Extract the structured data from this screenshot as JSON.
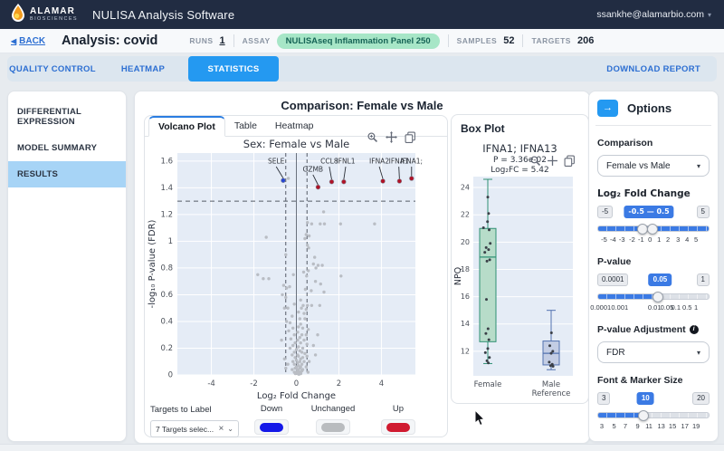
{
  "icons": {
    "back_arrow": "◀",
    "user_caret": "▾",
    "select_caret": "▾",
    "clear_x": "×",
    "small_caret": "⌄",
    "options_arrow": "→",
    "info": "i"
  },
  "header": {
    "brand_line1": "ALAMAR",
    "brand_line2": "BIOSCIENCES",
    "app_title": "NULISA Analysis Software",
    "user_email": "ssankhe@alamarbio.com"
  },
  "subheader": {
    "back_label": "BACK",
    "analysis_title": "Analysis: covid",
    "runs_label": "RUNS",
    "runs_value": "1",
    "assay_label": "ASSAY",
    "assay_value": "NULISAseq Inflammation Panel 250",
    "samples_label": "SAMPLES",
    "samples_value": "52",
    "targets_label": "TARGETS",
    "targets_value": "206"
  },
  "tabbar": {
    "tabs": [
      {
        "label": "QUALITY CONTROL",
        "active": false
      },
      {
        "label": "HEATMAP",
        "active": false
      },
      {
        "label": "STATISTICS",
        "active": true
      }
    ],
    "download": "DOWNLOAD REPORT"
  },
  "sidebar": {
    "items": [
      {
        "label": "DIFFERENTIAL EXPRESSION",
        "active": false
      },
      {
        "label": "MODEL SUMMARY",
        "active": false
      },
      {
        "label": "RESULTS",
        "active": true
      }
    ]
  },
  "main": {
    "title": "Comparison: Female vs Male",
    "plot_tabs": [
      {
        "label": "Volcano Plot",
        "active": true
      },
      {
        "label": "Table",
        "active": false
      },
      {
        "label": "Heatmap",
        "active": false
      }
    ],
    "targets": {
      "label": "Targets to Label",
      "value": "7 Targets selec...",
      "legend": [
        {
          "label": "Down",
          "color": "#1418e8"
        },
        {
          "label": "Unchanged",
          "color": "#b9bcbf"
        },
        {
          "label": "Up",
          "color": "#d01a30"
        }
      ]
    }
  },
  "boxplot": {
    "panel_title": "Box Plot",
    "title": "IFNA1; IFNA13",
    "p_line": "P = 3.36e-02",
    "fc_line": "Log₂FC = 5.42"
  },
  "options": {
    "panel_title": "Options",
    "comparison": {
      "label": "Comparison",
      "value": "Female vs Male"
    },
    "log2fc": {
      "label": "Log₂ Fold Change",
      "min": "-5",
      "max": "5",
      "value": "-0.5 — 0.5",
      "value_pos": 46,
      "fill_from": 0,
      "fill_to": 100,
      "handles": [
        40,
        49
      ],
      "ticks": [
        [
          "-5",
          6
        ],
        [
          "-4",
          14
        ],
        [
          "-3",
          22
        ],
        [
          "-2",
          31
        ],
        [
          "-1",
          39
        ],
        [
          "0",
          47
        ],
        [
          "1",
          55
        ],
        [
          "2",
          63
        ],
        [
          "3",
          72
        ],
        [
          "4",
          80
        ],
        [
          "5",
          88
        ]
      ]
    },
    "pvalue": {
      "label": "P-value",
      "min": "0.0001",
      "max": "1",
      "value": "0.05",
      "value_pos": 56,
      "fill_from": 0,
      "fill_to": 54,
      "handles": [
        54
      ],
      "ticks": [
        [
          "0.0001",
          3
        ],
        [
          "0.001",
          20
        ],
        [
          "0.01",
          51
        ],
        [
          "0.05",
          62
        ],
        [
          "0.1",
          70
        ],
        [
          "0.5",
          80
        ],
        [
          "1",
          88
        ]
      ]
    },
    "padj": {
      "label": "P-value Adjustment",
      "value": "FDR"
    },
    "marker": {
      "label": "Font & Marker Size",
      "min": "3",
      "max": "20",
      "value": "10",
      "value_pos": 43,
      "fill_from": 0,
      "fill_to": 41,
      "handles": [
        41
      ],
      "ticks": [
        [
          "3",
          4
        ],
        [
          "5",
          15
        ],
        [
          "7",
          25
        ],
        [
          "9",
          36
        ],
        [
          "11",
          46
        ],
        [
          "13",
          57
        ],
        [
          "15",
          67
        ],
        [
          "17",
          78
        ],
        [
          "19",
          88
        ]
      ]
    }
  },
  "chart_data": [
    {
      "type": "scatter",
      "title": "Sex: Female vs Male",
      "xlabel": "Log₂ Fold Change",
      "ylabel": "-log₁₀ P-value (FDR)",
      "xlim": [
        -5.6,
        5.6
      ],
      "ylim": [
        0,
        1.66
      ],
      "xticks": [
        -4,
        -2,
        0,
        2,
        4
      ],
      "yticks": [
        0,
        0.2,
        0.4,
        0.6,
        0.8,
        1,
        1.2,
        1.4,
        1.6
      ],
      "threshold_y": 1.3,
      "threshold_x": [
        -0.5,
        0.5
      ],
      "colors": {
        "unchanged": "#b9bdc4",
        "up": "#b01227",
        "down": "#2746d2"
      },
      "labeled_points": [
        {
          "label": "SELE",
          "type": "down",
          "x": -0.62,
          "y": 1.455,
          "lx": -0.95,
          "ly": 1.575
        },
        {
          "label": "GZMB",
          "type": "up",
          "x": 1.02,
          "y": 1.405,
          "lx": 0.78,
          "ly": 1.515
        },
        {
          "label": "CCL8",
          "type": "up",
          "x": 1.66,
          "y": 1.445,
          "lx": 1.55,
          "ly": 1.575
        },
        {
          "label": "IFNL1",
          "type": "up",
          "x": 2.23,
          "y": 1.445,
          "lx": 2.32,
          "ly": 1.575
        },
        {
          "label": "IFNA2",
          "type": "up",
          "x": 4.07,
          "y": 1.45,
          "lx": 3.9,
          "ly": 1.575
        },
        {
          "label": "IFNA1",
          "type": "up",
          "x": 4.85,
          "y": 1.45,
          "lx": 4.82,
          "ly": 1.575
        },
        {
          "label": "IFNA1;",
          "type": "up",
          "x": 5.42,
          "y": 1.47,
          "lx": 5.42,
          "ly": 1.575
        }
      ],
      "points": [
        [
          -0.38,
          1.47
        ],
        [
          1.28,
          1.22
        ],
        [
          0.52,
          1.14
        ],
        [
          0.72,
          1.13
        ],
        [
          1.12,
          1.13
        ],
        [
          1.32,
          1.13
        ],
        [
          2.08,
          1.13
        ],
        [
          3.68,
          1.13
        ],
        [
          0.46,
          1.05
        ],
        [
          0.6,
          1.04
        ],
        [
          -1.42,
          1.03
        ],
        [
          0.4,
          1.02
        ],
        [
          0.52,
          0.97
        ],
        [
          0.58,
          0.95
        ],
        [
          -0.5,
          0.9
        ],
        [
          0.86,
          0.88
        ],
        [
          0.8,
          0.83
        ],
        [
          1.02,
          0.82
        ],
        [
          1.22,
          0.82
        ],
        [
          0.92,
          0.8
        ],
        [
          0.56,
          0.78
        ],
        [
          0.34,
          0.77
        ],
        [
          -1.82,
          0.75
        ],
        [
          -0.14,
          0.75
        ],
        [
          0.48,
          0.74
        ],
        [
          2.1,
          0.74
        ],
        [
          -1.56,
          0.72
        ],
        [
          -1.3,
          0.72
        ],
        [
          0.9,
          0.7
        ],
        [
          1.14,
          0.68
        ],
        [
          -0.6,
          0.67
        ],
        [
          -0.32,
          0.66
        ],
        [
          -0.46,
          0.65
        ],
        [
          0.42,
          0.64
        ],
        [
          0.7,
          0.63
        ],
        [
          1.3,
          0.62
        ],
        [
          -0.66,
          0.6
        ],
        [
          -0.5,
          0.58
        ],
        [
          0.2,
          0.56
        ],
        [
          -0.1,
          0.53
        ],
        [
          0.32,
          0.52
        ],
        [
          0.52,
          0.52
        ],
        [
          0.72,
          0.52
        ],
        [
          1.1,
          0.52
        ],
        [
          -0.56,
          0.5
        ],
        [
          -0.4,
          0.5
        ],
        [
          0.24,
          0.5
        ],
        [
          0.46,
          0.49
        ],
        [
          0.1,
          0.47
        ],
        [
          0.36,
          0.46
        ],
        [
          -0.2,
          0.44
        ],
        [
          0.16,
          0.42
        ],
        [
          0.4,
          0.42
        ],
        [
          -0.46,
          0.4
        ],
        [
          -0.3,
          0.39
        ],
        [
          0.2,
          0.38
        ],
        [
          0.1,
          0.36
        ],
        [
          -0.16,
          0.35
        ],
        [
          0.3,
          0.35
        ],
        [
          0.56,
          0.34
        ],
        [
          -0.36,
          0.33
        ],
        [
          0.06,
          0.32
        ],
        [
          -0.1,
          0.3
        ],
        [
          0.26,
          0.3
        ],
        [
          0.46,
          0.3
        ],
        [
          1.0,
          0.3
        ],
        [
          0.16,
          0.28
        ],
        [
          -0.26,
          0.27
        ],
        [
          -0.7,
          0.26
        ],
        [
          0.06,
          0.26
        ],
        [
          0.36,
          0.26
        ],
        [
          -0.06,
          0.24
        ],
        [
          0.2,
          0.24
        ],
        [
          0.5,
          0.23
        ],
        [
          0.8,
          0.22
        ],
        [
          -0.16,
          0.22
        ],
        [
          0.1,
          0.21
        ],
        [
          -0.3,
          0.2
        ],
        [
          0.3,
          0.2
        ],
        [
          0.0,
          0.19
        ],
        [
          0.16,
          0.18
        ],
        [
          -0.1,
          0.17
        ],
        [
          0.26,
          0.17
        ],
        [
          0.4,
          0.16
        ],
        [
          -0.2,
          0.15
        ],
        [
          0.06,
          0.15
        ],
        [
          0.9,
          0.15
        ],
        [
          0.1,
          0.14
        ],
        [
          0.5,
          0.14
        ],
        [
          -0.06,
          0.13
        ],
        [
          0.3,
          0.13
        ],
        [
          -0.56,
          0.12
        ],
        [
          0.2,
          0.12
        ],
        [
          0.0,
          0.11
        ],
        [
          -0.16,
          0.1
        ],
        [
          0.16,
          0.1
        ],
        [
          0.36,
          0.1
        ],
        [
          0.6,
          0.1
        ],
        [
          0.06,
          0.09
        ],
        [
          -0.4,
          0.08
        ],
        [
          -0.1,
          0.08
        ],
        [
          0.26,
          0.08
        ],
        [
          0.1,
          0.07
        ],
        [
          0.0,
          0.06
        ],
        [
          0.2,
          0.06
        ],
        [
          0.46,
          0.06
        ],
        [
          -0.06,
          0.05
        ],
        [
          0.16,
          0.05
        ],
        [
          -0.5,
          0.05
        ],
        [
          0.05,
          0.04
        ],
        [
          0.3,
          0.04
        ],
        [
          -0.2,
          0.04
        ],
        [
          0.1,
          0.03
        ],
        [
          0.26,
          0.03
        ],
        [
          0.0,
          0.02
        ],
        [
          0.16,
          0.02
        ],
        [
          -0.1,
          0.02
        ],
        [
          0.55,
          0.02
        ],
        [
          0.05,
          0.01
        ],
        [
          0.21,
          0.01
        ],
        [
          -0.05,
          0.01
        ],
        [
          0.12,
          0.005
        ]
      ]
    },
    {
      "type": "box",
      "ylabel": "NPQ",
      "yticks": [
        12,
        14,
        16,
        18,
        20,
        22,
        24
      ],
      "ylim": [
        10.2,
        24.8
      ],
      "groups": [
        {
          "name": "Female",
          "name2": "",
          "fill": "#b7dcc9",
          "stroke": "#2f8f74",
          "q1": 12.7,
          "median": 18.9,
          "q3": 21.0,
          "whisker_low": 11.1,
          "whisker_high": 24.6,
          "points": [
            [
              0,
              23.3
            ],
            [
              0.3,
              22.1
            ],
            [
              -0.1,
              21.5
            ],
            [
              -1.6,
              21.05
            ],
            [
              0.5,
              20.9
            ],
            [
              0.9,
              19.9
            ],
            [
              -0.6,
              19.6
            ],
            [
              0.3,
              19.45
            ],
            [
              -1.1,
              19.25
            ],
            [
              0.7,
              18.7
            ],
            [
              -0.3,
              18.6
            ],
            [
              -0.5,
              15.8
            ],
            [
              0.1,
              13.65
            ],
            [
              -0.7,
              13.3
            ],
            [
              0.4,
              12.85
            ],
            [
              0,
              12.2
            ],
            [
              -0.9,
              11.9
            ],
            [
              0.6,
              11.55
            ],
            [
              -0.3,
              11.3
            ],
            [
              0.2,
              11.15
            ]
          ]
        },
        {
          "name": "Male",
          "name2": "Reference",
          "fill": "#c3cde4",
          "stroke": "#5272b0",
          "q1": 11.0,
          "median": 11.85,
          "q3": 12.75,
          "whisker_low": 10.65,
          "whisker_high": 15.0,
          "points": [
            [
              0.1,
              13.35
            ],
            [
              -0.5,
              12.4
            ],
            [
              0.6,
              12.0
            ],
            [
              0,
              11.85
            ],
            [
              -0.7,
              11.2
            ],
            [
              0.4,
              11.05
            ],
            [
              -0.2,
              10.95
            ],
            [
              0.7,
              10.9
            ]
          ]
        }
      ]
    }
  ]
}
